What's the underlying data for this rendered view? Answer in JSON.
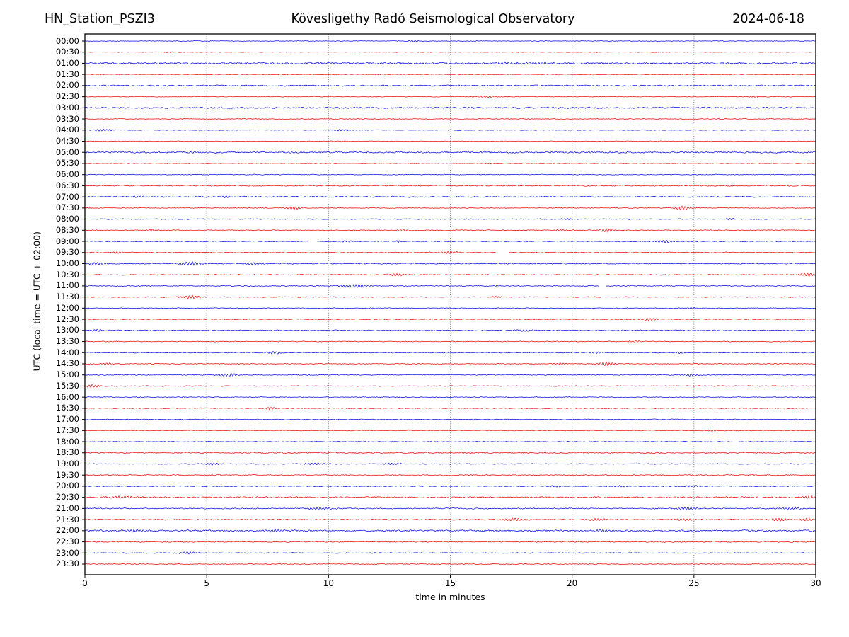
{
  "header": {
    "station": "HN_Station_PSZI3",
    "observatory": "Kövesligethy Radó Seismological Observatory",
    "date": "2024-06-18"
  },
  "chart_data": {
    "type": "line",
    "subtype": "helicorder-dayplot",
    "title": "HN_Station_PSZI3 — Kövesligethy Radó Seismological Observatory — 2024-06-18",
    "xlabel": "time in minutes",
    "ylabel": "UTC (local time = UTC + 02:00)",
    "xlim": [
      0,
      30
    ],
    "x_ticks": [
      0,
      5,
      10,
      15,
      20,
      25,
      30
    ],
    "minutes_per_row": 30,
    "grid": {
      "vertical_dotted_at_minutes": [
        5,
        10,
        15,
        20,
        25
      ],
      "horizontal": false
    },
    "legend": null,
    "colors": {
      "hour_trace": "#0000e0",
      "half_hour_trace": "#e60000",
      "grid": "#777777",
      "frame": "#000000"
    },
    "rows": [
      {
        "label": "00:00",
        "color": "blue",
        "noise": 0.6,
        "events": [
          [
            13.5,
            0.8
          ]
        ]
      },
      {
        "label": "00:30",
        "color": "red",
        "noise": 0.55,
        "events": [
          [
            3.5,
            0.7
          ]
        ]
      },
      {
        "label": "01:00",
        "color": "blue",
        "noise": 1.5,
        "events": [
          [
            17.0,
            1.0,
            0.5
          ],
          [
            18.5,
            1.0,
            0.5
          ]
        ]
      },
      {
        "label": "01:30",
        "color": "red",
        "noise": 0.6,
        "events": []
      },
      {
        "label": "02:00",
        "color": "blue",
        "noise": 1.2,
        "events": []
      },
      {
        "label": "02:30",
        "color": "red",
        "noise": 0.6,
        "events": [
          [
            16.5,
            1.0,
            0.3
          ],
          [
            27.5,
            0.8
          ]
        ]
      },
      {
        "label": "03:00",
        "color": "blue",
        "noise": 1.4,
        "events": []
      },
      {
        "label": "03:30",
        "color": "red",
        "noise": 0.8,
        "events": []
      },
      {
        "label": "04:00",
        "color": "blue",
        "noise": 0.7,
        "events": [
          [
            0.8,
            1.2,
            0.3
          ],
          [
            10.6,
            1.0,
            0.4
          ]
        ]
      },
      {
        "label": "04:30",
        "color": "red",
        "noise": 0.6,
        "events": []
      },
      {
        "label": "05:00",
        "color": "blue",
        "noise": 1.4,
        "events": []
      },
      {
        "label": "05:30",
        "color": "red",
        "noise": 0.6,
        "events": [
          [
            16.6,
            0.8
          ]
        ]
      },
      {
        "label": "06:00",
        "color": "blue",
        "noise": 0.7,
        "events": []
      },
      {
        "label": "06:30",
        "color": "red",
        "noise": 1.0,
        "events": []
      },
      {
        "label": "07:00",
        "color": "blue",
        "noise": 1.1,
        "events": [
          [
            2.2,
            1.2
          ],
          [
            5.8,
            1.0
          ]
        ]
      },
      {
        "label": "07:30",
        "color": "red",
        "noise": 0.7,
        "events": [
          [
            8.6,
            2.2,
            0.22
          ],
          [
            24.5,
            2.6,
            0.22
          ]
        ]
      },
      {
        "label": "08:00",
        "color": "blue",
        "noise": 0.8,
        "events": [
          [
            19.8,
            1.2
          ],
          [
            26.5,
            1.0
          ]
        ]
      },
      {
        "label": "08:30",
        "color": "red",
        "noise": 0.8,
        "events": [
          [
            2.7,
            1.2
          ],
          [
            13.1,
            1.2
          ],
          [
            19.6,
            1.2
          ],
          [
            21.4,
            2.4,
            0.25
          ]
        ]
      },
      {
        "label": "09:00",
        "color": "blue",
        "noise": 0.8,
        "events": [
          [
            10.8,
            1.0
          ],
          [
            12.9,
            1.6,
            0.1
          ],
          [
            23.8,
            1.8,
            0.25
          ]
        ],
        "gaps": [
          [
            9.15,
            9.5
          ]
        ]
      },
      {
        "label": "09:30",
        "color": "red",
        "noise": 0.8,
        "events": [
          [
            1.3,
            1.2
          ],
          [
            15.0,
            1.5,
            0.3
          ]
        ],
        "gaps": [
          [
            16.9,
            17.4
          ]
        ]
      },
      {
        "label": "10:00",
        "color": "blue",
        "noise": 0.9,
        "events": [
          [
            0.5,
            1.8,
            0.3
          ],
          [
            4.3,
            2.2,
            0.4
          ],
          [
            7.0,
            1.4,
            0.3
          ]
        ]
      },
      {
        "label": "10:30",
        "color": "red",
        "noise": 0.9,
        "events": [
          [
            12.8,
            1.5,
            0.35
          ],
          [
            29.7,
            2.2,
            0.25
          ]
        ]
      },
      {
        "label": "11:00",
        "color": "blue",
        "noise": 0.9,
        "events": [
          [
            10.8,
            1.6,
            0.35
          ],
          [
            11.4,
            1.4,
            0.3
          ],
          [
            16.9,
            1.2,
            0.1
          ]
        ],
        "gaps": [
          [
            21.1,
            21.4
          ]
        ]
      },
      {
        "label": "11:30",
        "color": "red",
        "noise": 0.8,
        "events": [
          [
            4.4,
            2.2,
            0.3
          ],
          [
            16.9,
            1.3
          ]
        ]
      },
      {
        "label": "12:00",
        "color": "blue",
        "noise": 0.7,
        "events": [
          [
            25.0,
            0.8
          ]
        ]
      },
      {
        "label": "12:30",
        "color": "red",
        "noise": 0.8,
        "events": [
          [
            23.2,
            1.7,
            0.25
          ]
        ]
      },
      {
        "label": "13:00",
        "color": "blue",
        "noise": 0.9,
        "events": [
          [
            0.5,
            1.4
          ],
          [
            18.0,
            1.2,
            0.3
          ]
        ]
      },
      {
        "label": "13:30",
        "color": "red",
        "noise": 0.8,
        "events": [
          [
            22.5,
            0.9
          ]
        ]
      },
      {
        "label": "14:00",
        "color": "blue",
        "noise": 0.8,
        "events": [
          [
            7.8,
            1.7,
            0.25
          ],
          [
            21.0,
            1.1
          ],
          [
            24.4,
            1.1
          ]
        ]
      },
      {
        "label": "14:30",
        "color": "red",
        "noise": 0.8,
        "events": [
          [
            1.0,
            1.1
          ],
          [
            19.5,
            1.4
          ],
          [
            21.4,
            2.4,
            0.25
          ]
        ]
      },
      {
        "label": "15:00",
        "color": "blue",
        "noise": 0.8,
        "events": [
          [
            5.9,
            1.7,
            0.35
          ],
          [
            24.8,
            1.5,
            0.25
          ]
        ]
      },
      {
        "label": "15:30",
        "color": "red",
        "noise": 0.8,
        "events": [
          [
            0.3,
            2.0,
            0.2
          ]
        ]
      },
      {
        "label": "16:00",
        "color": "blue",
        "noise": 0.7,
        "events": []
      },
      {
        "label": "16:30",
        "color": "red",
        "noise": 0.9,
        "events": [
          [
            7.6,
            1.9,
            0.15
          ]
        ]
      },
      {
        "label": "17:00",
        "color": "blue",
        "noise": 0.7,
        "events": []
      },
      {
        "label": "17:30",
        "color": "red",
        "noise": 0.7,
        "events": [
          [
            25.8,
            1.0
          ]
        ]
      },
      {
        "label": "18:00",
        "color": "blue",
        "noise": 0.7,
        "events": []
      },
      {
        "label": "18:30",
        "color": "red",
        "noise": 1.2,
        "events": []
      },
      {
        "label": "19:00",
        "color": "blue",
        "noise": 0.8,
        "events": [
          [
            5.2,
            1.4,
            0.3
          ],
          [
            9.4,
            1.4,
            0.3
          ],
          [
            12.6,
            1.2,
            0.3
          ]
        ]
      },
      {
        "label": "19:30",
        "color": "red",
        "noise": 0.9,
        "events": []
      },
      {
        "label": "20:00",
        "color": "blue",
        "noise": 0.9,
        "events": [
          [
            19.3,
            1.2
          ],
          [
            22.0,
            1.1
          ],
          [
            25.0,
            1.1
          ]
        ]
      },
      {
        "label": "20:30",
        "color": "red",
        "noise": 1.3,
        "events": [
          [
            1.5,
            1.4,
            0.4
          ],
          [
            29.8,
            1.8,
            0.25
          ]
        ]
      },
      {
        "label": "21:00",
        "color": "blue",
        "noise": 1.0,
        "events": [
          [
            9.7,
            1.7,
            0.35
          ],
          [
            24.7,
            1.7,
            0.35
          ],
          [
            28.9,
            1.4,
            0.3
          ]
        ]
      },
      {
        "label": "21:30",
        "color": "red",
        "noise": 1.0,
        "events": [
          [
            17.6,
            1.7,
            0.35
          ],
          [
            21.0,
            1.4,
            0.3
          ],
          [
            24.5,
            1.4,
            0.3
          ],
          [
            28.5,
            1.8,
            0.3
          ],
          [
            29.6,
            1.8,
            0.2
          ]
        ]
      },
      {
        "label": "22:00",
        "color": "blue",
        "noise": 1.5,
        "events": [
          [
            2.0,
            1.4,
            0.3
          ],
          [
            7.7,
            1.4,
            0.3
          ],
          [
            21.2,
            1.4,
            0.3
          ]
        ]
      },
      {
        "label": "22:30",
        "color": "red",
        "noise": 1.0,
        "events": []
      },
      {
        "label": "23:00",
        "color": "blue",
        "noise": 0.8,
        "events": [
          [
            4.3,
            1.4,
            0.3
          ]
        ]
      },
      {
        "label": "23:30",
        "color": "red",
        "noise": 0.8,
        "events": []
      }
    ]
  }
}
